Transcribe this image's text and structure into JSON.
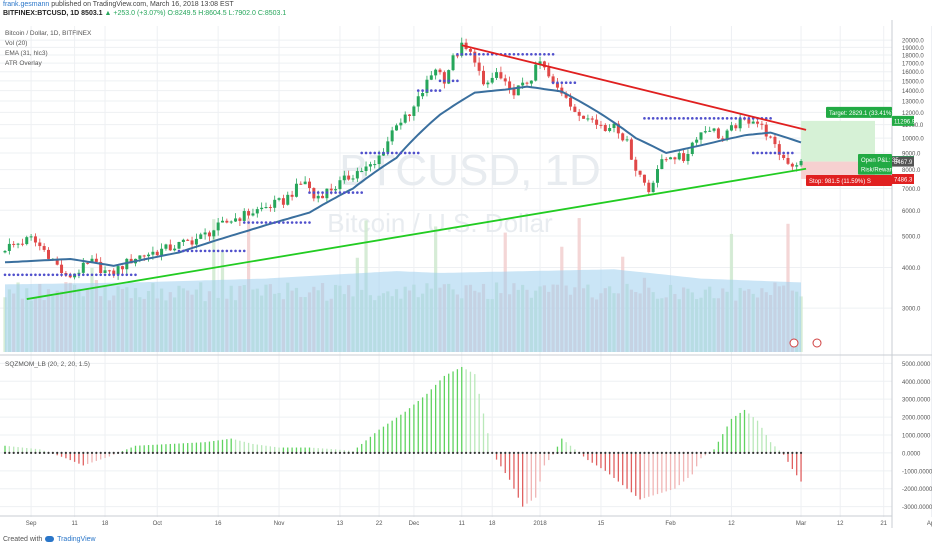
{
  "header": {
    "author": "frank.gesmann",
    "published": "published on TradingView.com, March 16, 2018 13:08 EST",
    "symbol_line": "BITFINEX:BTCUSD, 1D  8503.1",
    "change": "▲ +253.0 (+3.07%)",
    "ohlc": "O:8249.5 H:8604.5 L:7902.0 C:8503.1"
  },
  "main_pane": {
    "series_label": "Bitcoin / Dollar, 1D, BITFINEX",
    "indicators": [
      "Vol (20)",
      "EMA (31, hlc3)",
      "ATR Overlay"
    ],
    "watermark_symbol": "BTCUSD, 1D",
    "watermark_name": "Bitcoin / U.S. Dollar",
    "target_label": "Target: 2829.1 (33.41%)",
    "target_price": "11296.9",
    "current_price": "8503.1",
    "pnl_label": "Open P&L: 35",
    "risk_reward_label": "Risk/Reward R",
    "entry_price": "8467.9",
    "stop_label": "Stop: 981.5 (11.59%) S",
    "stop_price": "7486.3"
  },
  "osc_pane": {
    "label": "SQZMOM_LB (20, 2, 20, 1.5)"
  },
  "footer": {
    "created_with": "Created with",
    "brand": "TradingView"
  },
  "colors": {
    "up": "#26a65b",
    "down": "#e04848",
    "ema": "#3a6f9e",
    "trend_red": "#e02020",
    "trend_green": "#22cc22",
    "atr_dots": "#5050cc",
    "target_bg": "#d6f1d6",
    "stop_bg": "#f6d0d0"
  },
  "chart_data": [
    {
      "type": "candlestick",
      "title": "Bitcoin / Dollar, 1D, BITFINEX",
      "x_ticks": [
        "Sep",
        "11",
        "18",
        "Oct",
        "16",
        "Nov",
        "13",
        "22",
        "Dec",
        "11",
        "18",
        "2018",
        "15",
        "Feb",
        "12",
        "Mar",
        "12",
        "21",
        "Apr"
      ],
      "y_ticks": [
        3000,
        4000,
        5000,
        6000,
        7000,
        8000,
        9000,
        10000,
        11000,
        12000,
        13000,
        14000,
        15000,
        16000,
        17000,
        18000,
        19000,
        20000
      ],
      "ylim": [
        2200,
        20600
      ],
      "scale": "log",
      "close_anchors": [
        [
          0,
          4600
        ],
        [
          6,
          4900
        ],
        [
          10,
          4400
        ],
        [
          14,
          3700
        ],
        [
          20,
          4150
        ],
        [
          24,
          3800
        ],
        [
          30,
          4300
        ],
        [
          38,
          4600
        ],
        [
          45,
          4950
        ],
        [
          52,
          5600
        ],
        [
          58,
          6000
        ],
        [
          64,
          6400
        ],
        [
          69,
          7400
        ],
        [
          71,
          6550
        ],
        [
          76,
          7100
        ],
        [
          81,
          7900
        ],
        [
          85,
          8250
        ],
        [
          88,
          9800
        ],
        [
          90,
          11200
        ],
        [
          93,
          11600
        ],
        [
          96,
          13900
        ],
        [
          99,
          16500
        ],
        [
          101,
          15200
        ],
        [
          103,
          17500
        ],
        [
          105,
          19100
        ],
        [
          108,
          17600
        ],
        [
          110,
          14200
        ],
        [
          113,
          15800
        ],
        [
          116,
          13800
        ],
        [
          119,
          14400
        ],
        [
          121,
          15400
        ],
        [
          123,
          17100
        ],
        [
          126,
          14500
        ],
        [
          129,
          13600
        ],
        [
          132,
          11400
        ],
        [
          135,
          11800
        ],
        [
          138,
          10500
        ],
        [
          140,
          11200
        ],
        [
          143,
          9600
        ],
        [
          145,
          8100
        ],
        [
          148,
          6900
        ],
        [
          150,
          8100
        ],
        [
          153,
          8900
        ],
        [
          156,
          8600
        ],
        [
          159,
          10200
        ],
        [
          162,
          10800
        ],
        [
          165,
          9900
        ],
        [
          168,
          11000
        ],
        [
          172,
          11500
        ],
        [
          175,
          10400
        ],
        [
          177,
          9300
        ],
        [
          179,
          8700
        ],
        [
          181,
          8300
        ],
        [
          183,
          8503
        ]
      ],
      "ema_anchors": [
        [
          0,
          4150
        ],
        [
          15,
          4250
        ],
        [
          25,
          4050
        ],
        [
          40,
          4450
        ],
        [
          55,
          5150
        ],
        [
          70,
          5900
        ],
        [
          80,
          7000
        ],
        [
          90,
          8700
        ],
        [
          100,
          11800
        ],
        [
          108,
          13800
        ],
        [
          115,
          14100
        ],
        [
          120,
          14400
        ],
        [
          128,
          13900
        ],
        [
          136,
          12100
        ],
        [
          145,
          10000
        ],
        [
          152,
          9000
        ],
        [
          160,
          9500
        ],
        [
          170,
          10200
        ],
        [
          176,
          10400
        ],
        [
          183,
          9700
        ]
      ],
      "volume_anchors": [
        [
          0,
          3550
        ],
        [
          30,
          3600
        ],
        [
          60,
          3700
        ],
        [
          90,
          3900
        ],
        [
          100,
          3850
        ],
        [
          120,
          3900
        ],
        [
          140,
          3950
        ],
        [
          160,
          3700
        ],
        [
          183,
          3600
        ]
      ],
      "atr_dot_segments": [
        {
          "value": 3800,
          "from": 0,
          "to": 30
        },
        {
          "value": 4500,
          "from": 40,
          "to": 55
        },
        {
          "value": 5500,
          "from": 55,
          "to": 70
        },
        {
          "value": 6800,
          "from": 70,
          "to": 82
        },
        {
          "value": 9000,
          "from": 82,
          "to": 95
        },
        {
          "value": 14000,
          "from": 95,
          "to": 100
        },
        {
          "value": 15000,
          "from": 100,
          "to": 104
        },
        {
          "value": 18100,
          "from": 104,
          "to": 126
        },
        {
          "value": 14800,
          "from": 126,
          "to": 131
        },
        {
          "value": 11500,
          "from": 147,
          "to": 176
        },
        {
          "value": 9000,
          "from": 172,
          "to": 181
        }
      ],
      "trendline_down": [
        [
          105,
          19300
        ],
        [
          183,
          10600
        ]
      ],
      "trendline_up": [
        [
          5,
          3200
        ],
        [
          183,
          8050
        ]
      ],
      "target_zone": {
        "from": 183,
        "to": 200,
        "top": 11296.9,
        "bottom": 8467.9
      },
      "stop_zone": {
        "from": 183,
        "to": 200,
        "top": 8467.9,
        "bottom": 7486.3
      }
    },
    {
      "type": "bar",
      "title": "SQZMOM_LB (20, 2, 20, 1.5)",
      "y_ticks": [
        -3000,
        -2000,
        -1000,
        0,
        1000,
        2000,
        3000,
        4000,
        5000
      ],
      "ylim": [
        -3300,
        5300
      ],
      "momentum_anchors": [
        [
          0,
          400
        ],
        [
          8,
          200
        ],
        [
          14,
          -300
        ],
        [
          18,
          -700
        ],
        [
          24,
          -200
        ],
        [
          30,
          400
        ],
        [
          38,
          500
        ],
        [
          46,
          600
        ],
        [
          52,
          800
        ],
        [
          57,
          500
        ],
        [
          63,
          300
        ],
        [
          70,
          300
        ],
        [
          76,
          200
        ],
        [
          80,
          100
        ],
        [
          86,
          1300
        ],
        [
          92,
          2300
        ],
        [
          97,
          3300
        ],
        [
          101,
          4300
        ],
        [
          105,
          4800
        ],
        [
          108,
          4400
        ],
        [
          112,
          0
        ],
        [
          116,
          -1500
        ],
        [
          119,
          -3000
        ],
        [
          122,
          -2500
        ],
        [
          124,
          -700
        ],
        [
          126,
          -100
        ],
        [
          128,
          800
        ],
        [
          131,
          200
        ],
        [
          134,
          -400
        ],
        [
          138,
          -1000
        ],
        [
          142,
          -1800
        ],
        [
          146,
          -2600
        ],
        [
          150,
          -2300
        ],
        [
          154,
          -2000
        ],
        [
          158,
          -1200
        ],
        [
          160,
          -300
        ],
        [
          163,
          200
        ],
        [
          167,
          1900
        ],
        [
          170,
          2400
        ],
        [
          173,
          1800
        ],
        [
          176,
          600
        ],
        [
          179,
          -100
        ],
        [
          181,
          -900
        ],
        [
          183,
          -1600
        ]
      ]
    }
  ]
}
